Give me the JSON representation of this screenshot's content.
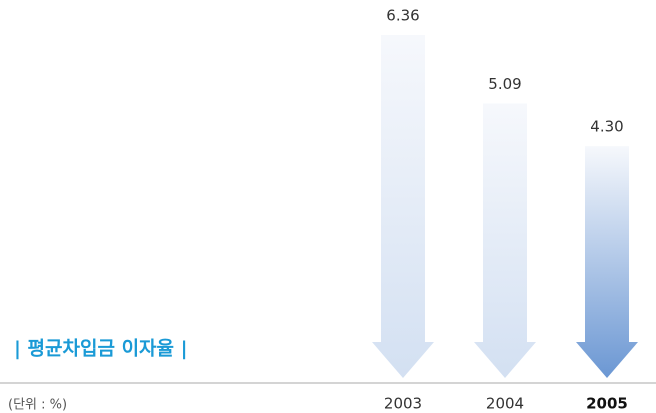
{
  "chart_data": {
    "type": "arrow-bar",
    "title": "| 평균차입금 이자율 |",
    "subtitle": "(단위 : %)",
    "categories": [
      "2003",
      "2004",
      "2005"
    ],
    "values": [
      6.36,
      5.09,
      4.3
    ],
    "value_labels": [
      "6.36",
      "5.09",
      "4.30"
    ],
    "colors": [
      "#d3e0f2",
      "#d3e0f2",
      "#6b97d3"
    ]
  }
}
